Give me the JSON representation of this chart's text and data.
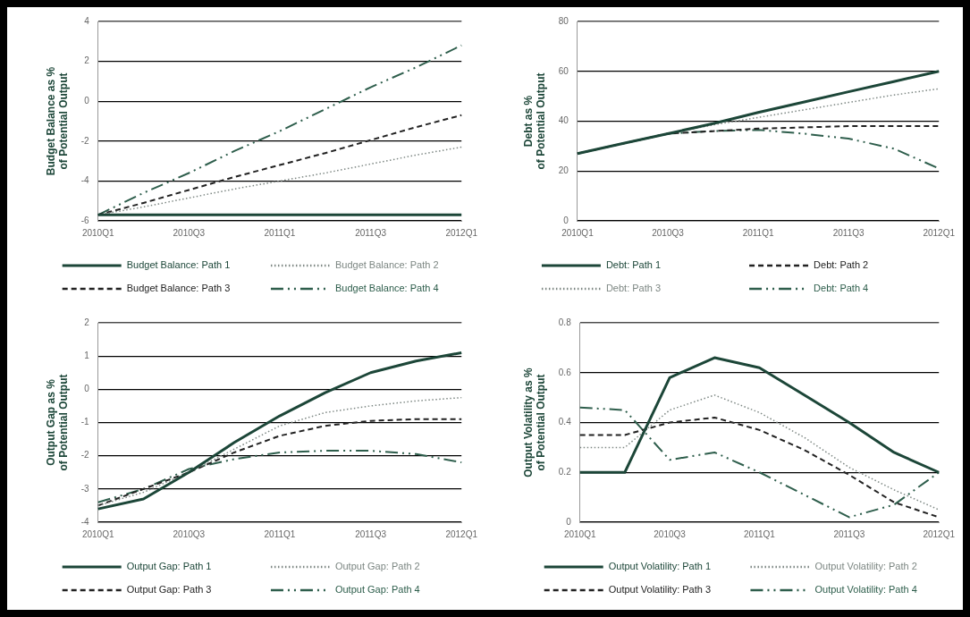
{
  "chart_data": [
    {
      "type": "line",
      "ylabel": "Budget Balance as %\nof Potential Output",
      "categories": [
        "2010Q1",
        null,
        "2010Q3",
        null,
        "2011Q1",
        null,
        "2011Q3",
        null,
        "2012Q1"
      ],
      "ylim": [
        -6,
        4
      ],
      "yticks": [
        -6,
        -4,
        -2,
        0,
        2,
        4
      ],
      "grid": "y",
      "legend": "bottom",
      "marker": "none",
      "series": [
        {
          "name": "Budget Balance: Path 1",
          "color": "#1c4638",
          "line_style": "solid",
          "values": [
            -5.7,
            -5.7,
            -5.7,
            -5.7,
            -5.7,
            -5.7,
            -5.7,
            -5.7,
            -5.7
          ]
        },
        {
          "name": "Budget Balance: Path 2",
          "color": "#7d8783",
          "line_style": "dotted",
          "values": [
            -5.7,
            -5.3,
            -4.85,
            -4.4,
            -4.0,
            -3.6,
            -3.15,
            -2.7,
            -2.3
          ]
        },
        {
          "name": "Budget Balance: Path 3",
          "color": "#222222",
          "line_style": "dashed",
          "values": [
            -5.7,
            -5.1,
            -4.45,
            -3.8,
            -3.2,
            -2.6,
            -1.95,
            -1.3,
            -0.7
          ]
        },
        {
          "name": "Budget Balance: Path 4",
          "color": "#2e5e4c",
          "line_style": "dashdot",
          "values": [
            -5.7,
            -4.6,
            -3.6,
            -2.5,
            -1.5,
            -0.4,
            0.7,
            1.7,
            2.8
          ]
        }
      ]
    },
    {
      "type": "line",
      "ylabel": "Debt as %\nof Potential Output",
      "categories": [
        "2010Q1",
        null,
        "2010Q3",
        null,
        "2011Q1",
        null,
        "2011Q3",
        null,
        "2012Q1"
      ],
      "ylim": [
        0,
        80
      ],
      "yticks": [
        0,
        20,
        40,
        60,
        80
      ],
      "grid": "y",
      "legend": "bottom",
      "marker": "none",
      "series": [
        {
          "name": "Debt: Path 1",
          "color": "#1c4638",
          "line_style": "solid",
          "values": [
            27,
            31,
            35,
            39,
            43.5,
            47.6,
            51.8,
            55.9,
            60
          ]
        },
        {
          "name": "Debt: Path 2",
          "color": "#222222",
          "line_style": "dashed",
          "values": [
            27,
            31,
            35,
            36,
            37,
            37.5,
            38,
            38,
            38
          ]
        },
        {
          "name": "Debt: Path 3",
          "color": "#7d8783",
          "line_style": "dotted",
          "values": [
            27,
            31,
            35,
            38.5,
            41.5,
            44.5,
            47.5,
            50.5,
            53
          ]
        },
        {
          "name": "Debt: Path 4",
          "color": "#2e5e4c",
          "line_style": "dashdot",
          "values": [
            27,
            31,
            35,
            36,
            36.5,
            35,
            33,
            29,
            21
          ]
        }
      ]
    },
    {
      "type": "line",
      "ylabel": "Output Gap as %\nof Potential Output",
      "categories": [
        "2010Q1",
        null,
        "2010Q3",
        null,
        "2011Q1",
        null,
        "2011Q3",
        null,
        "2012Q1"
      ],
      "ylim": [
        -4,
        2
      ],
      "yticks": [
        -4,
        -3,
        -2,
        -1,
        0,
        1,
        2
      ],
      "grid": "y",
      "legend": "bottom",
      "marker": "none",
      "series": [
        {
          "name": "Output Gap: Path 1",
          "color": "#1c4638",
          "line_style": "solid",
          "values": [
            -3.6,
            -3.3,
            -2.5,
            -1.6,
            -0.8,
            -0.1,
            0.5,
            0.85,
            1.1
          ]
        },
        {
          "name": "Output Gap: Path 2",
          "color": "#7d8783",
          "line_style": "dotted",
          "values": [
            -3.5,
            -3.1,
            -2.5,
            -1.8,
            -1.1,
            -0.7,
            -0.5,
            -0.35,
            -0.25
          ]
        },
        {
          "name": "Output Gap: Path 3",
          "color": "#222222",
          "line_style": "dashed",
          "values": [
            -3.5,
            -3.0,
            -2.5,
            -1.9,
            -1.4,
            -1.1,
            -0.95,
            -0.9,
            -0.9
          ]
        },
        {
          "name": "Output Gap: Path 4",
          "color": "#2e5e4c",
          "line_style": "dashdot",
          "values": [
            -3.4,
            -3.0,
            -2.4,
            -2.1,
            -1.9,
            -1.85,
            -1.85,
            -1.95,
            -2.2
          ]
        }
      ]
    },
    {
      "type": "line",
      "ylabel": "Output Volatility as %\nof Potential Output",
      "categories": [
        "2010Q1",
        null,
        "2010Q3",
        null,
        "2011Q1",
        null,
        "2011Q3",
        null,
        "2012Q1"
      ],
      "ylim": [
        0,
        0.8
      ],
      "yticks": [
        0,
        0.2,
        0.4,
        0.6,
        0.8
      ],
      "grid": "y",
      "legend": "bottom",
      "marker": "none",
      "series": [
        {
          "name": "Output Volatility: Path 1",
          "color": "#1c4638",
          "line_style": "solid",
          "values": [
            0.2,
            0.2,
            0.58,
            0.66,
            0.62,
            0.51,
            0.4,
            0.28,
            0.2
          ]
        },
        {
          "name": "Output Volatility: Path 2",
          "color": "#7d8783",
          "line_style": "dotted",
          "values": [
            0.3,
            0.3,
            0.45,
            0.51,
            0.44,
            0.34,
            0.22,
            0.13,
            0.05
          ]
        },
        {
          "name": "Output Volatility: Path 3",
          "color": "#222222",
          "line_style": "dashed",
          "values": [
            0.35,
            0.35,
            0.4,
            0.42,
            0.37,
            0.29,
            0.19,
            0.08,
            0.02
          ]
        },
        {
          "name": "Output Volatility: Path 4",
          "color": "#2e5e4c",
          "line_style": "dashdot",
          "values": [
            0.46,
            0.45,
            0.25,
            0.28,
            0.2,
            0.11,
            0.02,
            0.07,
            0.2
          ]
        }
      ]
    }
  ]
}
